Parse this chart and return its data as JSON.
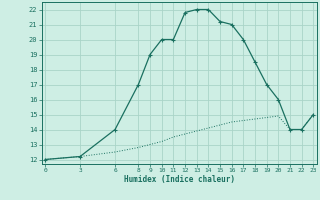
{
  "xlabel": "Humidex (Indice chaleur)",
  "background_color": "#ceeee4",
  "grid_color": "#aad4c8",
  "line_color": "#1a7060",
  "xticks": [
    0,
    3,
    6,
    8,
    9,
    10,
    11,
    12,
    13,
    14,
    15,
    16,
    17,
    18,
    19,
    20,
    21,
    22,
    23
  ],
  "yticks": [
    12,
    13,
    14,
    15,
    16,
    17,
    18,
    19,
    20,
    21,
    22
  ],
  "xlim": [
    -0.3,
    23.3
  ],
  "ylim": [
    11.7,
    22.5
  ],
  "line1_x": [
    0,
    3,
    6,
    8,
    9,
    10,
    11,
    12,
    13,
    14,
    15,
    16,
    17,
    18,
    19,
    20,
    21,
    22,
    23
  ],
  "line1_y": [
    12.0,
    12.2,
    14.0,
    17.0,
    19.0,
    20.0,
    20.0,
    21.8,
    22.0,
    22.0,
    21.2,
    21.0,
    20.0,
    18.5,
    17.0,
    16.0,
    14.0,
    14.0,
    15.0
  ],
  "line2_x": [
    0,
    3,
    6,
    8,
    9,
    10,
    11,
    12,
    13,
    14,
    15,
    16,
    17,
    18,
    19,
    20,
    21,
    22,
    23
  ],
  "line2_y": [
    12.0,
    12.2,
    12.5,
    12.8,
    13.0,
    13.2,
    13.5,
    13.7,
    13.9,
    14.1,
    14.3,
    14.5,
    14.6,
    14.7,
    14.8,
    14.9,
    14.0,
    14.0,
    15.0
  ]
}
